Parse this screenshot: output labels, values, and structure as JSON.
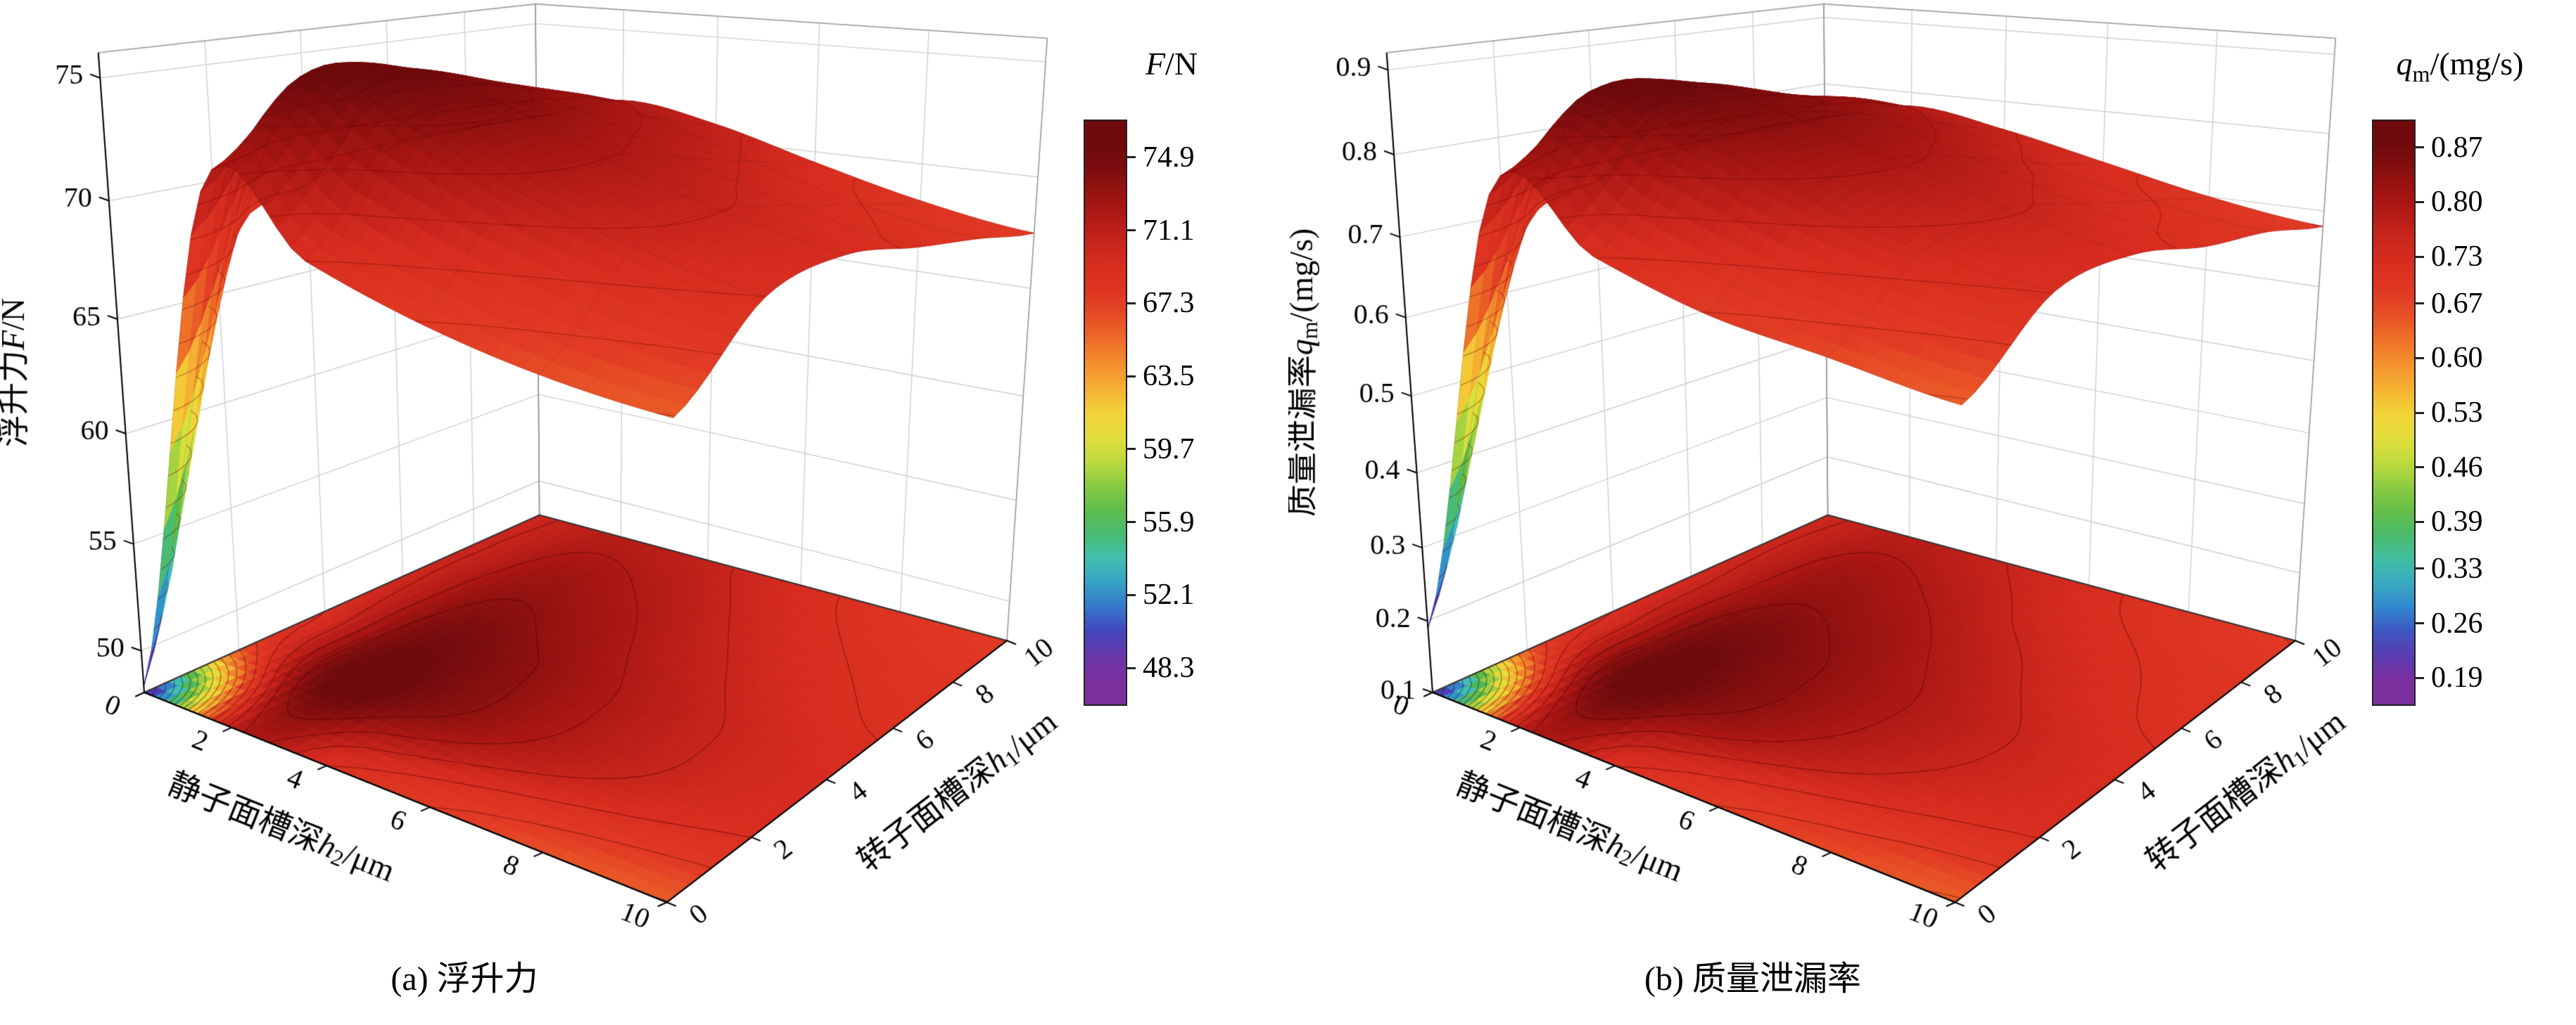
{
  "figure": {
    "background": "#ffffff",
    "text_color": "#000000"
  },
  "colormap": [
    [
      0.0,
      "#7b2f9e"
    ],
    [
      0.07,
      "#4343bd"
    ],
    [
      0.14,
      "#2f8fd0"
    ],
    [
      0.21,
      "#3fc0b5"
    ],
    [
      0.29,
      "#4eb84e"
    ],
    [
      0.36,
      "#8ccb42"
    ],
    [
      0.43,
      "#d9e23c"
    ],
    [
      0.5,
      "#f4d238"
    ],
    [
      0.57,
      "#f5a02f"
    ],
    [
      0.64,
      "#ef6f29"
    ],
    [
      0.71,
      "#e23b24"
    ],
    [
      0.8,
      "#d62b1f"
    ],
    [
      0.9,
      "#a91613"
    ],
    [
      1.0,
      "#6f0a0c"
    ]
  ],
  "chart_data": [
    {
      "type": "surface",
      "caption": "(a) 浮升力",
      "x_axis": {
        "title": {
          "pre": "转子面槽深",
          "var": "h",
          "sub": "1",
          "unit": "/μm"
        },
        "ticks": [
          0,
          2,
          4,
          6,
          8,
          10
        ],
        "min": 0,
        "max": 10
      },
      "y_axis": {
        "title": {
          "pre": "静子面槽深",
          "var": "h",
          "sub": "2",
          "unit": "/μm"
        },
        "ticks": [
          0,
          2,
          4,
          6,
          8,
          10
        ],
        "min": 0,
        "max": 10
      },
      "z_axis": {
        "title": {
          "pre": "浮升力",
          "var": "F",
          "sub": "",
          "unit": "/N"
        },
        "ticks": [
          50,
          55,
          60,
          65,
          70,
          75
        ],
        "min": 48,
        "max": 76
      },
      "colorbar": {
        "title": {
          "var": "F",
          "sub": "",
          "unit": "/N"
        },
        "ticks": [
          "74.9",
          "71.1",
          "67.3",
          "63.5",
          "59.7",
          "55.9",
          "52.1",
          "48.3"
        ],
        "vmin": 48.3,
        "vmax": 74.9
      },
      "surface": {
        "h1": [
          0,
          2,
          4,
          6,
          8,
          10
        ],
        "h2": [
          0,
          2,
          4,
          6,
          8,
          10
        ],
        "z": [
          [
            48.3,
            66.0,
            69.0,
            70.0,
            70.2,
            70.2
          ],
          [
            71.0,
            74.9,
            74.5,
            73.5,
            72.5,
            71.5
          ],
          [
            69.0,
            73.5,
            73.8,
            72.8,
            71.8,
            70.8
          ],
          [
            67.5,
            71.5,
            72.0,
            71.2,
            70.3,
            69.5
          ],
          [
            66.5,
            70.0,
            70.5,
            69.8,
            69.0,
            68.3
          ],
          [
            66.0,
            69.0,
            69.5,
            68.8,
            68.2,
            67.5
          ]
        ]
      }
    },
    {
      "type": "surface",
      "caption": "(b) 质量泄漏率",
      "x_axis": {
        "title": {
          "pre": "转子面槽深",
          "var": "h",
          "sub": "1",
          "unit": "/μm"
        },
        "ticks": [
          0,
          2,
          4,
          6,
          8,
          10
        ],
        "min": 0,
        "max": 10
      },
      "y_axis": {
        "title": {
          "pre": "静子面槽深",
          "var": "h",
          "sub": "2",
          "unit": "/μm"
        },
        "ticks": [
          0,
          2,
          4,
          6,
          8,
          10
        ],
        "min": 0,
        "max": 10
      },
      "z_axis": {
        "title": {
          "pre": "质量泄漏率",
          "var": "q",
          "sub": "m",
          "unit": "/(mg/s)"
        },
        "ticks": [
          0.1,
          0.2,
          0.3,
          0.4,
          0.5,
          0.6,
          0.7,
          0.8,
          0.9
        ],
        "min": 0.1,
        "max": 0.92
      },
      "colorbar": {
        "title": {
          "var": "q",
          "sub": "m",
          "unit": "/(mg/s)"
        },
        "ticks": [
          "0.87",
          "0.80",
          "0.73",
          "0.67",
          "0.60",
          "0.53",
          "0.46",
          "0.39",
          "0.33",
          "0.26",
          "0.19"
        ],
        "vmin": 0.19,
        "vmax": 0.87
      },
      "surface": {
        "h1": [
          0,
          2,
          4,
          6,
          8,
          10
        ],
        "h2": [
          0,
          2,
          4,
          6,
          8,
          10
        ],
        "z": [
          [
            0.19,
            0.64,
            0.72,
            0.74,
            0.75,
            0.75
          ],
          [
            0.77,
            0.87,
            0.86,
            0.83,
            0.81,
            0.78
          ],
          [
            0.72,
            0.83,
            0.84,
            0.82,
            0.79,
            0.76
          ],
          [
            0.68,
            0.78,
            0.8,
            0.78,
            0.75,
            0.73
          ],
          [
            0.66,
            0.74,
            0.76,
            0.74,
            0.72,
            0.7
          ],
          [
            0.64,
            0.72,
            0.73,
            0.71,
            0.7,
            0.68
          ]
        ]
      }
    }
  ]
}
